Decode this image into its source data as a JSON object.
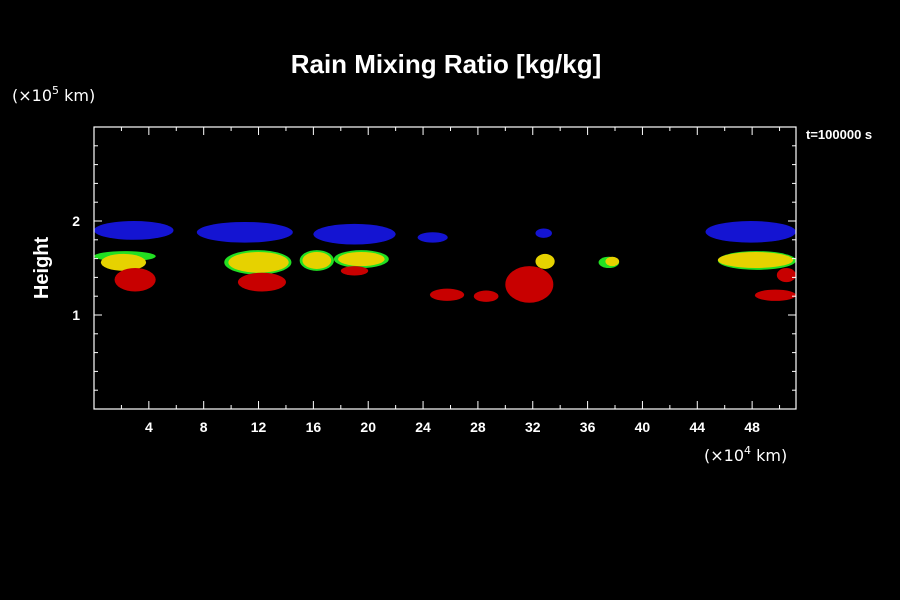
{
  "chart_data": {
    "type": "heatmap",
    "title": "Rain Mixing Ratio [kg/kg]",
    "xlabel": "",
    "ylabel": "Height",
    "x_unit_prefix": "(×10",
    "x_unit_exp": "4",
    "x_unit_suffix": " km)",
    "y_unit_prefix": "(×10",
    "y_unit_exp": "5",
    "y_unit_suffix": " km)",
    "time_label": "t=100000 s",
    "xlim": [
      0,
      51.2
    ],
    "ylim": [
      0,
      3
    ],
    "x_ticks": [
      4,
      8,
      12,
      16,
      20,
      24,
      28,
      32,
      36,
      40,
      44,
      48
    ],
    "y_ticks": [
      1,
      2
    ],
    "colors": {
      "blue": "#1414d2",
      "green": "#22e022",
      "yellow": "#e6d200",
      "red": "#c80000"
    },
    "regions": [
      {
        "color": "blue",
        "x": [
          0,
          5.8
        ],
        "y": [
          1.8,
          2.0
        ]
      },
      {
        "color": "blue",
        "x": [
          7.5,
          14.5
        ],
        "y": [
          1.77,
          1.99
        ]
      },
      {
        "color": "blue",
        "x": [
          16.0,
          22.0
        ],
        "y": [
          1.75,
          1.97
        ]
      },
      {
        "color": "blue",
        "x": [
          23.6,
          25.8
        ],
        "y": [
          1.77,
          1.88
        ]
      },
      {
        "color": "blue",
        "x": [
          32.2,
          33.4
        ],
        "y": [
          1.82,
          1.92
        ]
      },
      {
        "color": "blue",
        "x": [
          44.6,
          51.2
        ],
        "y": [
          1.77,
          2.0
        ]
      },
      {
        "color": "green",
        "x": [
          0,
          4.5
        ],
        "y": [
          1.57,
          1.68
        ]
      },
      {
        "color": "yellow",
        "x": [
          0.5,
          3.8
        ],
        "y": [
          1.47,
          1.65
        ]
      },
      {
        "color": "red",
        "x": [
          1.5,
          4.5
        ],
        "y": [
          1.25,
          1.5
        ]
      },
      {
        "color": "green",
        "x": [
          9.5,
          14.4
        ],
        "y": [
          1.43,
          1.69
        ]
      },
      {
        "color": "yellow",
        "x": [
          9.8,
          14.2
        ],
        "y": [
          1.45,
          1.67
        ]
      },
      {
        "color": "red",
        "x": [
          10.5,
          14.0
        ],
        "y": [
          1.25,
          1.45
        ]
      },
      {
        "color": "green",
        "x": [
          15.0,
          17.5
        ],
        "y": [
          1.47,
          1.69
        ]
      },
      {
        "color": "yellow",
        "x": [
          15.2,
          17.3
        ],
        "y": [
          1.49,
          1.67
        ]
      },
      {
        "color": "green",
        "x": [
          17.5,
          21.5
        ],
        "y": [
          1.5,
          1.69
        ]
      },
      {
        "color": "yellow",
        "x": [
          17.8,
          21.2
        ],
        "y": [
          1.52,
          1.67
        ]
      },
      {
        "color": "red",
        "x": [
          18.0,
          20.0
        ],
        "y": [
          1.42,
          1.52
        ]
      },
      {
        "color": "red",
        "x": [
          24.5,
          27.0
        ],
        "y": [
          1.15,
          1.28
        ]
      },
      {
        "color": "red",
        "x": [
          27.7,
          29.5
        ],
        "y": [
          1.14,
          1.26
        ]
      },
      {
        "color": "red",
        "x": [
          30.0,
          33.5
        ],
        "y": [
          1.13,
          1.52
        ]
      },
      {
        "color": "yellow",
        "x": [
          32.2,
          33.6
        ],
        "y": [
          1.49,
          1.65
        ]
      },
      {
        "color": "green",
        "x": [
          36.8,
          38.3
        ],
        "y": [
          1.5,
          1.62
        ]
      },
      {
        "color": "yellow",
        "x": [
          37.3,
          38.3
        ],
        "y": [
          1.52,
          1.62
        ]
      },
      {
        "color": "green",
        "x": [
          45.5,
          51.2
        ],
        "y": [
          1.48,
          1.68
        ]
      },
      {
        "color": "yellow",
        "x": [
          45.5,
          51.0
        ],
        "y": [
          1.5,
          1.67
        ]
      },
      {
        "color": "red",
        "x": [
          48.2,
          51.2
        ],
        "y": [
          1.15,
          1.27
        ]
      },
      {
        "color": "red",
        "x": [
          49.8,
          51.2
        ],
        "y": [
          1.35,
          1.5
        ]
      }
    ]
  }
}
